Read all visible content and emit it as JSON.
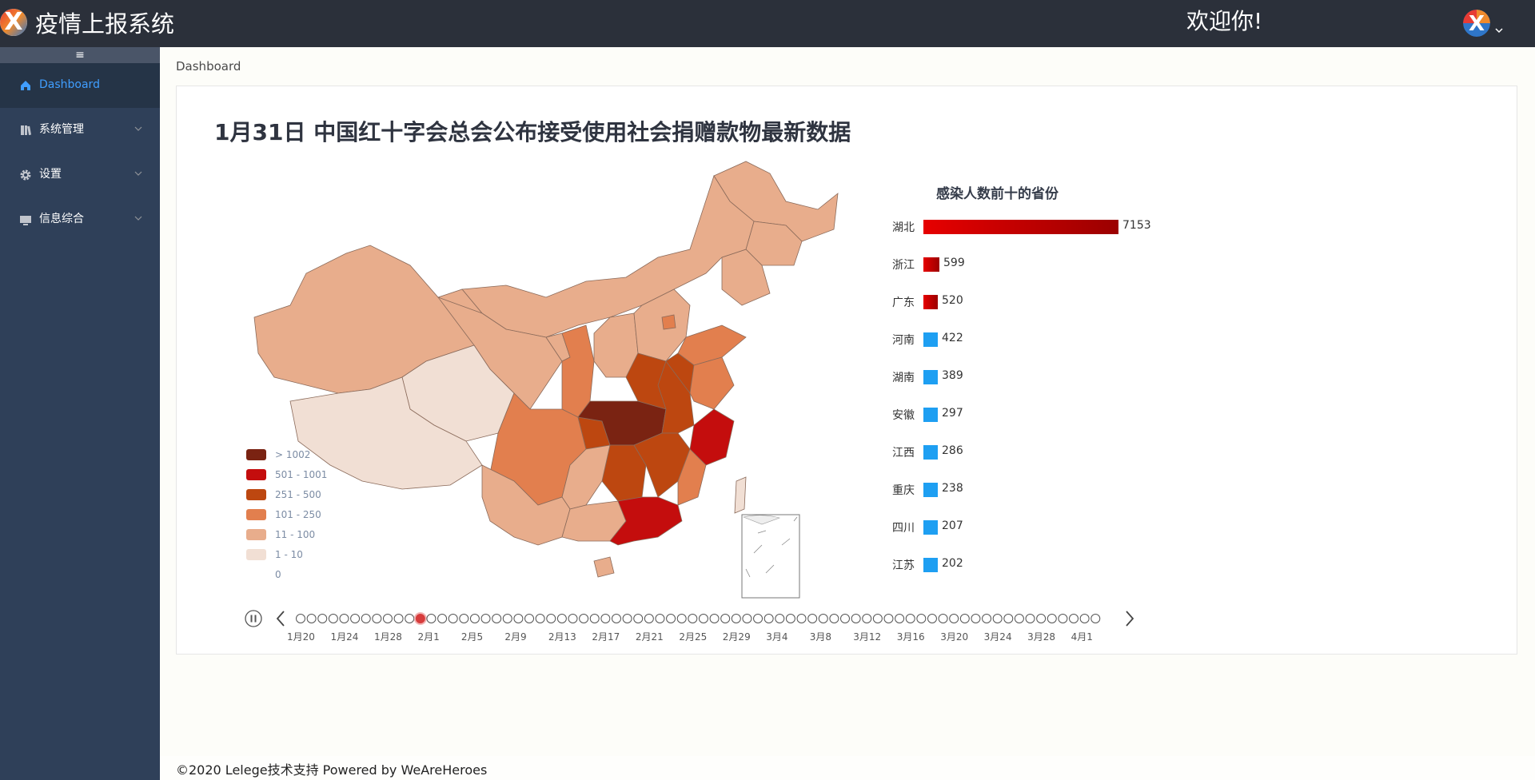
{
  "app": {
    "title": "疫情上报系统",
    "welcome": "欢迎你!"
  },
  "sidebar": {
    "toggle": "≡",
    "items": [
      {
        "label": "Dashboard",
        "icon": "home-icon"
      },
      {
        "label": "系统管理",
        "icon": "book-icon"
      },
      {
        "label": "设置",
        "icon": "gear-icon"
      },
      {
        "label": "信息综合",
        "icon": "monitor-icon"
      }
    ]
  },
  "breadcrumb": "Dashboard",
  "headline": "1月31日  中国红十字会总会公布接受使用社会捐赠款物最新数据",
  "legend": [
    {
      "label": "> 1002",
      "color": "#7a2312"
    },
    {
      "label": "501 - 1001",
      "color": "#c40d0d"
    },
    {
      "label": "251 - 500",
      "color": "#bd4710"
    },
    {
      "label": "101 - 250",
      "color": "#e27f4e"
    },
    {
      "label": "11 - 100",
      "color": "#e8ad8c"
    },
    {
      "label": "1 - 10",
      "color": "#f1dfd4"
    },
    {
      "label": "0",
      "color": "#ffffff"
    }
  ],
  "chart_data": {
    "type": "bar",
    "title": "感染人数前十的省份",
    "categories": [
      "湖北",
      "浙江",
      "广东",
      "河南",
      "湖南",
      "安徽",
      "江西",
      "重庆",
      "四川",
      "江苏"
    ],
    "values": [
      7153,
      599,
      520,
      422,
      389,
      297,
      286,
      238,
      207,
      202
    ],
    "colors": {
      "high": "#e60000",
      "low": "#1e9ff2"
    }
  },
  "timeline": {
    "labels": [
      "1月20",
      "1月24",
      "1月28",
      "2月1",
      "2月5",
      "2月9",
      "2月13",
      "2月17",
      "2月21",
      "2月25",
      "2月29",
      "3月4",
      "3月8",
      "3月12",
      "3月16",
      "3月20",
      "3月24",
      "3月28",
      "4月1"
    ],
    "count": 74,
    "current": 11
  },
  "footer": "©2020 Lelege技术支持 Powered by WeAreHeroes"
}
